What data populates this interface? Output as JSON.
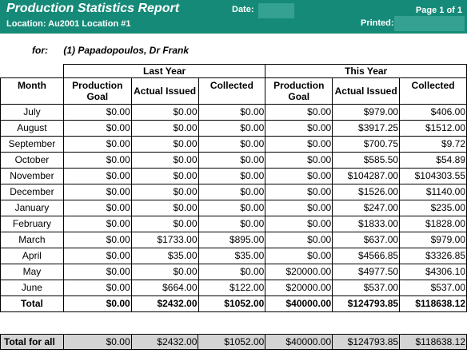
{
  "header": {
    "title": "Production Statistics Report",
    "location": "Location: Au2001 Location #1",
    "date_label": "Date:",
    "page": "Page 1 of 1",
    "printed_label": "Printed:"
  },
  "provider": {
    "for_label": "for:",
    "name": "(1) Papadopoulos, Dr Frank"
  },
  "table": {
    "group_last": "Last Year",
    "group_this": "This Year",
    "col_month": "Month",
    "col_goal": "Production Goal",
    "col_issued": "Actual Issued",
    "col_collected": "Collected",
    "rows": [
      {
        "month": "July",
        "ly_goal": "$0.00",
        "ly_issued": "$0.00",
        "ly_collected": "$0.00",
        "ty_goal": "$0.00",
        "ty_issued": "$979.00",
        "ty_collected": "$406.00"
      },
      {
        "month": "August",
        "ly_goal": "$0.00",
        "ly_issued": "$0.00",
        "ly_collected": "$0.00",
        "ty_goal": "$0.00",
        "ty_issued": "$3917.25",
        "ty_collected": "$1512.00"
      },
      {
        "month": "September",
        "ly_goal": "$0.00",
        "ly_issued": "$0.00",
        "ly_collected": "$0.00",
        "ty_goal": "$0.00",
        "ty_issued": "$700.75",
        "ty_collected": "$9.72"
      },
      {
        "month": "October",
        "ly_goal": "$0.00",
        "ly_issued": "$0.00",
        "ly_collected": "$0.00",
        "ty_goal": "$0.00",
        "ty_issued": "$585.50",
        "ty_collected": "$54.89"
      },
      {
        "month": "November",
        "ly_goal": "$0.00",
        "ly_issued": "$0.00",
        "ly_collected": "$0.00",
        "ty_goal": "$0.00",
        "ty_issued": "$104287.00",
        "ty_collected": "$104303.55"
      },
      {
        "month": "December",
        "ly_goal": "$0.00",
        "ly_issued": "$0.00",
        "ly_collected": "$0.00",
        "ty_goal": "$0.00",
        "ty_issued": "$1526.00",
        "ty_collected": "$1140.00"
      },
      {
        "month": "January",
        "ly_goal": "$0.00",
        "ly_issued": "$0.00",
        "ly_collected": "$0.00",
        "ty_goal": "$0.00",
        "ty_issued": "$247.00",
        "ty_collected": "$235.00"
      },
      {
        "month": "February",
        "ly_goal": "$0.00",
        "ly_issued": "$0.00",
        "ly_collected": "$0.00",
        "ty_goal": "$0.00",
        "ty_issued": "$1833.00",
        "ty_collected": "$1828.00"
      },
      {
        "month": "March",
        "ly_goal": "$0.00",
        "ly_issued": "$1733.00",
        "ly_collected": "$895.00",
        "ty_goal": "$0.00",
        "ty_issued": "$637.00",
        "ty_collected": "$979.00"
      },
      {
        "month": "April",
        "ly_goal": "$0.00",
        "ly_issued": "$35.00",
        "ly_collected": "$35.00",
        "ty_goal": "$0.00",
        "ty_issued": "$4566.85",
        "ty_collected": "$3326.85"
      },
      {
        "month": "May",
        "ly_goal": "$0.00",
        "ly_issued": "$0.00",
        "ly_collected": "$0.00",
        "ty_goal": "$20000.00",
        "ty_issued": "$4977.50",
        "ty_collected": "$4306.10"
      },
      {
        "month": "June",
        "ly_goal": "$0.00",
        "ly_issued": "$664.00",
        "ly_collected": "$122.00",
        "ty_goal": "$20000.00",
        "ty_issued": "$537.00",
        "ty_collected": "$537.00"
      }
    ],
    "total": {
      "month": "Total",
      "ly_goal": "$0.00",
      "ly_issued": "$2432.00",
      "ly_collected": "$1052.00",
      "ty_goal": "$40000.00",
      "ty_issued": "$124793.85",
      "ty_collected": "$118638.12"
    }
  },
  "footer_total": {
    "label": "Total for all",
    "ly_goal": "$0.00",
    "ly_issued": "$2432.00",
    "ly_collected": "$1052.00",
    "ty_goal": "$40000.00",
    "ty_issued": "$124793.85",
    "ty_collected": "$118638.12"
  }
}
